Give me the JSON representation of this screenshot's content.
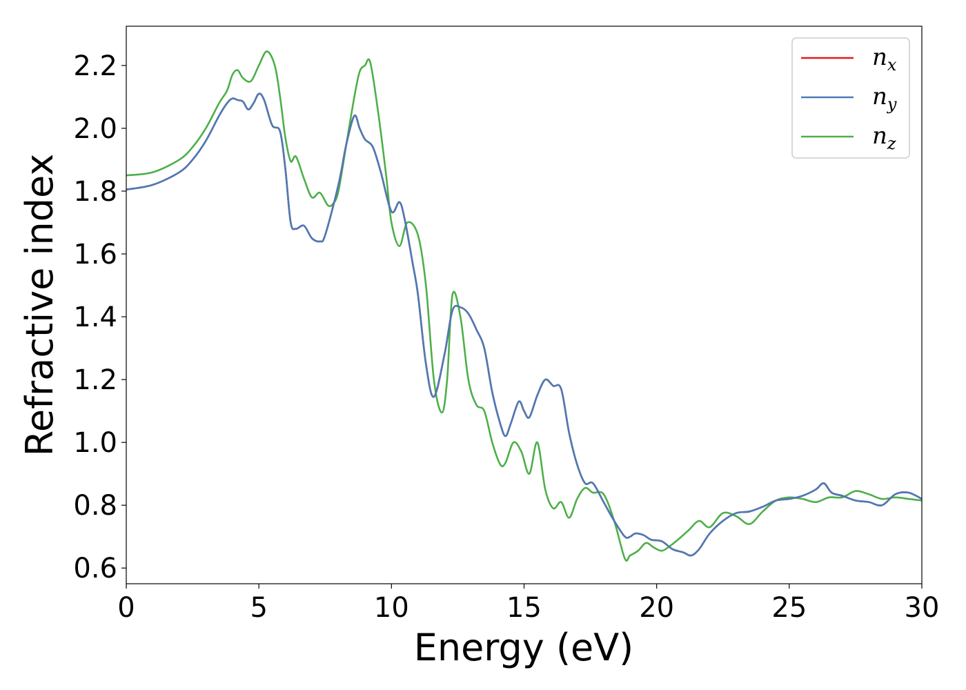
{
  "chart_data": {
    "type": "line",
    "xlabel": "Energy (eV)",
    "ylabel": "Refractive index",
    "xlim": [
      0,
      30
    ],
    "ylim": [
      0.55,
      2.325
    ],
    "xticks": [
      0,
      5,
      10,
      15,
      20,
      25,
      30
    ],
    "xtick_labels": [
      "0",
      "5",
      "10",
      "15",
      "20",
      "25",
      "30"
    ],
    "yticks": [
      0.6,
      0.8,
      1.0,
      1.2,
      1.4,
      1.6,
      1.8,
      2.0,
      2.2
    ],
    "ytick_labels": [
      "0.6",
      "0.8",
      "1.0",
      "1.2",
      "1.4",
      "1.6",
      "1.8",
      "2.0",
      "2.2"
    ],
    "grid": false,
    "legend_position": "top-right",
    "series": [
      {
        "name": "n",
        "sub": "x",
        "color": "#e41a1c",
        "x": [
          0,
          1,
          2,
          2.5,
          3,
          3.5,
          3.8,
          4.0,
          4.2,
          4.4,
          4.6,
          4.8,
          5.0,
          5.2,
          5.5,
          5.8,
          6.0,
          6.2,
          6.4,
          6.7,
          7.0,
          7.3,
          7.5,
          8.0,
          8.3,
          8.6,
          8.8,
          9.0,
          9.3,
          9.6,
          10.0,
          10.3,
          10.5,
          10.8,
          11.0,
          11.3,
          11.6,
          12.0,
          12.3,
          12.6,
          12.9,
          13.2,
          13.5,
          13.8,
          14.1,
          14.3,
          14.5,
          14.8,
          15.0,
          15.2,
          15.5,
          15.8,
          16.1,
          16.4,
          16.7,
          17.0,
          17.3,
          17.6,
          18.0,
          18.4,
          18.8,
          19.0,
          19.2,
          19.5,
          19.8,
          20.2,
          20.6,
          21.0,
          21.3,
          21.6,
          22.0,
          22.5,
          23.0,
          23.5,
          24.0,
          24.5,
          25.0,
          25.5,
          26.0,
          26.3,
          26.6,
          27.0,
          27.5,
          28.0,
          28.5,
          29.0,
          29.5,
          30.0
        ],
        "values": [
          1.805,
          1.82,
          1.86,
          1.9,
          1.96,
          2.04,
          2.08,
          2.095,
          2.09,
          2.085,
          2.06,
          2.08,
          2.11,
          2.09,
          2.01,
          1.99,
          1.87,
          1.7,
          1.68,
          1.69,
          1.65,
          1.64,
          1.66,
          1.82,
          1.95,
          2.04,
          2.0,
          1.965,
          1.94,
          1.86,
          1.735,
          1.765,
          1.71,
          1.57,
          1.47,
          1.25,
          1.145,
          1.28,
          1.42,
          1.43,
          1.41,
          1.36,
          1.3,
          1.16,
          1.06,
          1.02,
          1.06,
          1.13,
          1.1,
          1.08,
          1.15,
          1.2,
          1.18,
          1.17,
          1.03,
          0.93,
          0.87,
          0.87,
          0.81,
          0.75,
          0.7,
          0.7,
          0.71,
          0.705,
          0.69,
          0.685,
          0.66,
          0.65,
          0.64,
          0.66,
          0.71,
          0.75,
          0.775,
          0.78,
          0.795,
          0.815,
          0.82,
          0.83,
          0.85,
          0.87,
          0.84,
          0.83,
          0.815,
          0.81,
          0.8,
          0.835,
          0.84,
          0.82
        ]
      },
      {
        "name": "n",
        "sub": "y",
        "color": "#4a7bb7",
        "x": [
          0,
          1,
          2,
          2.5,
          3,
          3.5,
          3.8,
          4.0,
          4.2,
          4.4,
          4.6,
          4.8,
          5.0,
          5.2,
          5.5,
          5.8,
          6.0,
          6.2,
          6.4,
          6.7,
          7.0,
          7.3,
          7.5,
          8.0,
          8.3,
          8.6,
          8.8,
          9.0,
          9.3,
          9.6,
          10.0,
          10.3,
          10.5,
          10.8,
          11.0,
          11.3,
          11.6,
          12.0,
          12.3,
          12.6,
          12.9,
          13.2,
          13.5,
          13.8,
          14.1,
          14.3,
          14.5,
          14.8,
          15.0,
          15.2,
          15.5,
          15.8,
          16.1,
          16.4,
          16.7,
          17.0,
          17.3,
          17.6,
          18.0,
          18.4,
          18.8,
          19.0,
          19.2,
          19.5,
          19.8,
          20.2,
          20.6,
          21.0,
          21.3,
          21.6,
          22.0,
          22.5,
          23.0,
          23.5,
          24.0,
          24.5,
          25.0,
          25.5,
          26.0,
          26.3,
          26.6,
          27.0,
          27.5,
          28.0,
          28.5,
          29.0,
          29.5,
          30.0
        ],
        "values": [
          1.805,
          1.82,
          1.86,
          1.9,
          1.96,
          2.04,
          2.08,
          2.095,
          2.09,
          2.085,
          2.06,
          2.08,
          2.11,
          2.09,
          2.01,
          1.99,
          1.87,
          1.7,
          1.68,
          1.69,
          1.65,
          1.64,
          1.66,
          1.82,
          1.95,
          2.04,
          2.0,
          1.965,
          1.94,
          1.86,
          1.735,
          1.765,
          1.71,
          1.57,
          1.47,
          1.25,
          1.145,
          1.28,
          1.42,
          1.43,
          1.41,
          1.36,
          1.3,
          1.16,
          1.06,
          1.02,
          1.06,
          1.13,
          1.1,
          1.08,
          1.15,
          1.2,
          1.18,
          1.17,
          1.03,
          0.93,
          0.87,
          0.87,
          0.81,
          0.75,
          0.7,
          0.7,
          0.71,
          0.705,
          0.69,
          0.685,
          0.66,
          0.65,
          0.64,
          0.66,
          0.71,
          0.75,
          0.775,
          0.78,
          0.795,
          0.815,
          0.82,
          0.83,
          0.85,
          0.87,
          0.84,
          0.83,
          0.815,
          0.81,
          0.8,
          0.835,
          0.84,
          0.82
        ]
      },
      {
        "name": "n",
        "sub": "z",
        "color": "#4daf4a",
        "x": [
          0,
          1,
          2,
          2.5,
          3,
          3.5,
          3.8,
          4.0,
          4.2,
          4.4,
          4.7,
          5.0,
          5.3,
          5.6,
          5.8,
          6.0,
          6.2,
          6.4,
          6.7,
          7.0,
          7.3,
          7.6,
          7.8,
          8.0,
          8.3,
          8.6,
          8.8,
          9.0,
          9.2,
          9.5,
          9.8,
          10.0,
          10.3,
          10.6,
          11.0,
          11.3,
          11.6,
          11.9,
          12.1,
          12.3,
          12.6,
          12.9,
          13.2,
          13.5,
          13.8,
          14.1,
          14.3,
          14.6,
          14.9,
          15.2,
          15.5,
          15.8,
          16.1,
          16.4,
          16.7,
          17.0,
          17.3,
          17.6,
          18.0,
          18.4,
          18.8,
          19.0,
          19.3,
          19.6,
          19.9,
          20.2,
          20.5,
          20.8,
          21.2,
          21.6,
          22.0,
          22.5,
          23.0,
          23.5,
          24.0,
          24.5,
          25.0,
          25.5,
          26.0,
          26.5,
          27.0,
          27.5,
          28.0,
          28.5,
          29.0,
          29.5,
          30.0
        ],
        "values": [
          1.85,
          1.86,
          1.9,
          1.94,
          2.0,
          2.08,
          2.12,
          2.17,
          2.185,
          2.16,
          2.15,
          2.2,
          2.245,
          2.2,
          2.1,
          1.97,
          1.895,
          1.91,
          1.84,
          1.78,
          1.795,
          1.755,
          1.76,
          1.8,
          1.95,
          2.1,
          2.18,
          2.2,
          2.21,
          2.05,
          1.85,
          1.7,
          1.625,
          1.7,
          1.66,
          1.5,
          1.2,
          1.095,
          1.2,
          1.47,
          1.4,
          1.2,
          1.12,
          1.1,
          1.0,
          0.93,
          0.935,
          1.0,
          0.97,
          0.9,
          1.0,
          0.85,
          0.79,
          0.81,
          0.76,
          0.82,
          0.855,
          0.84,
          0.835,
          0.75,
          0.63,
          0.64,
          0.655,
          0.68,
          0.665,
          0.655,
          0.67,
          0.69,
          0.72,
          0.75,
          0.73,
          0.775,
          0.765,
          0.74,
          0.78,
          0.815,
          0.825,
          0.82,
          0.81,
          0.825,
          0.825,
          0.845,
          0.835,
          0.82,
          0.825,
          0.82,
          0.815
        ]
      }
    ]
  }
}
